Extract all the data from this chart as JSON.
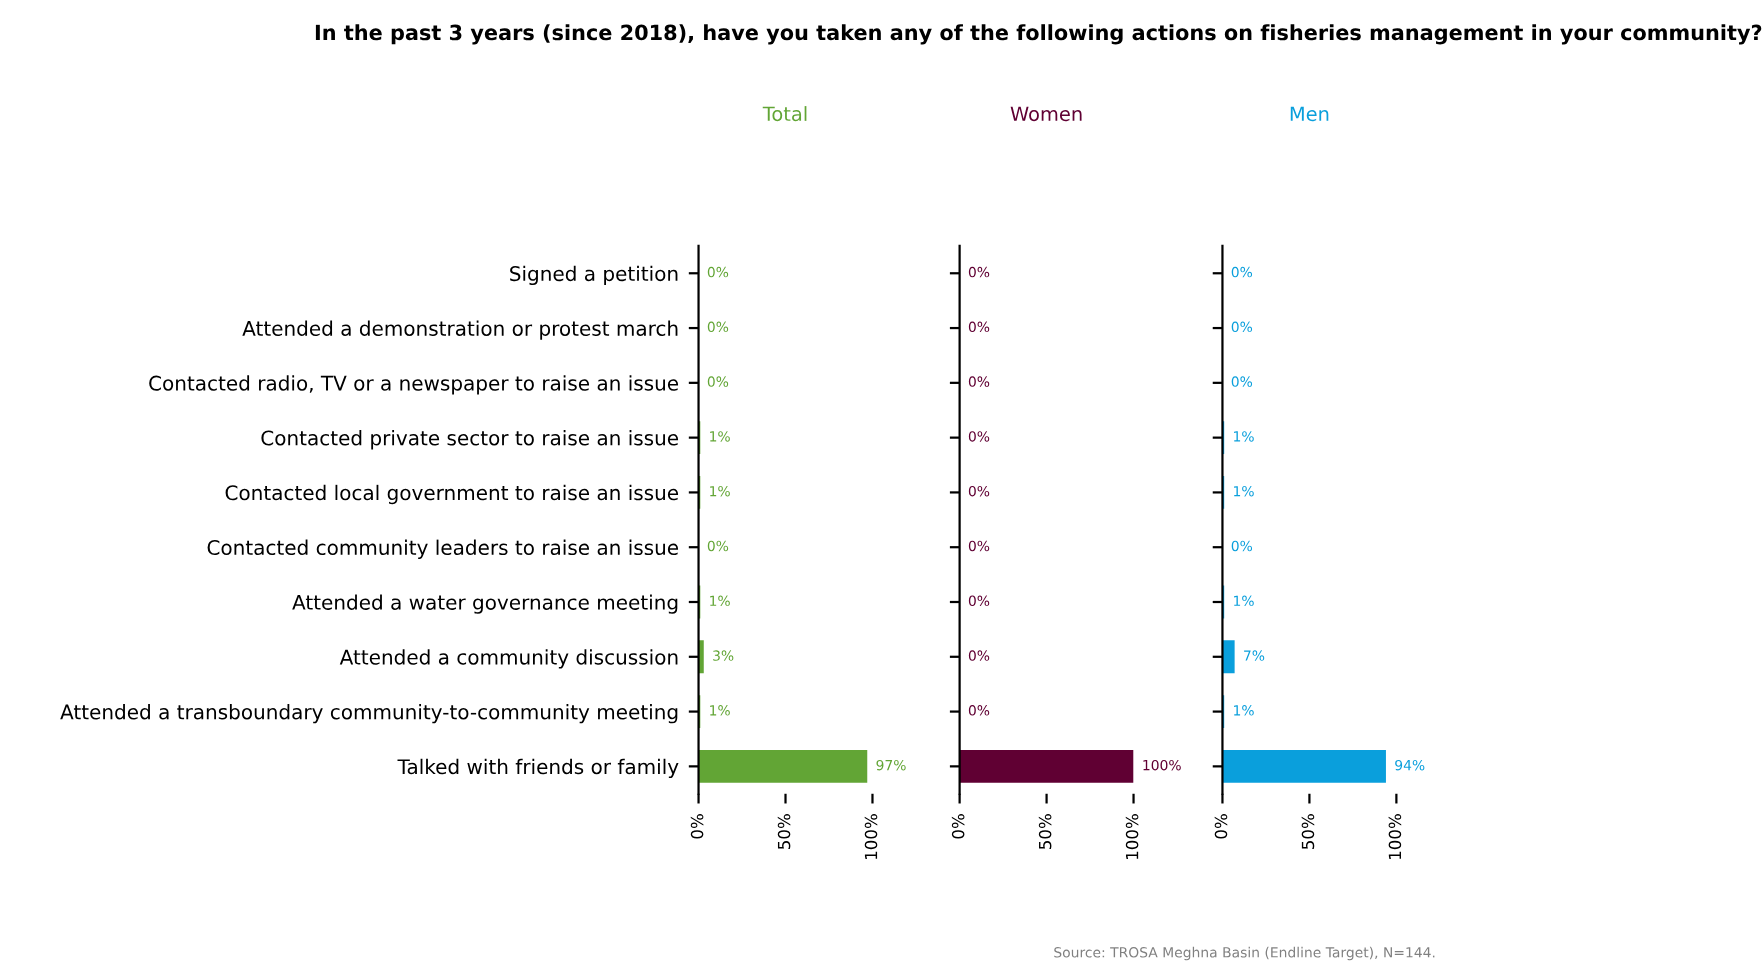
{
  "chart_data": [
    {
      "type": "bar",
      "orientation": "horizontal",
      "title": "Total",
      "annotations": [
        "In the past 3 years (since 2018), have you taken any of the following actions on fisheries management in your community?"
      ],
      "categories": [
        "Signed a petition",
        "Attended a demonstration or protest march",
        "Contacted radio, TV or a newspaper to raise an issue",
        "Contacted private sector to raise an issue",
        "Contacted local government to raise an issue",
        "Contacted community leaders to raise an issue",
        "Attended a water governance meeting",
        "Attended a community discussion",
        "Attended a transboundary community-to-community meeting",
        "Talked with friends or family"
      ],
      "series": [
        {
          "color": "#62a535",
          "values": [
            0,
            0,
            0,
            1,
            1,
            0,
            1,
            3,
            1,
            97
          ],
          "value_labels": [
            "0%",
            "0%",
            "0%",
            "1%",
            "1%",
            "0%",
            "1%",
            "3%",
            "1%",
            "97%"
          ]
        }
      ],
      "xlim": [
        0,
        100
      ],
      "xticks": [
        {
          "value": 0,
          "label": "0%"
        },
        {
          "value": 50,
          "label": "50%"
        },
        {
          "value": 100,
          "label": "100%"
        }
      ],
      "grid": false,
      "legend": false
    },
    {
      "type": "bar",
      "orientation": "horizontal",
      "title": "Women",
      "categories": [
        null,
        null,
        null,
        null,
        null,
        null,
        null,
        null,
        null,
        null
      ],
      "series": [
        {
          "color": "#600033",
          "values": [
            0,
            0,
            0,
            0,
            0,
            0,
            0,
            0,
            0,
            100
          ],
          "value_labels": [
            "0%",
            "0%",
            "0%",
            "0%",
            "0%",
            "0%",
            "0%",
            "0%",
            "0%",
            "100%"
          ]
        }
      ],
      "xlim": [
        0,
        100
      ],
      "xticks": [
        {
          "value": 0,
          "label": "0%"
        },
        {
          "value": 50,
          "label": "50%"
        },
        {
          "value": 100,
          "label": "100%"
        }
      ],
      "tick_labels": "x",
      "grid": false,
      "legend": false
    },
    {
      "type": "bar",
      "orientation": "horizontal",
      "title": "Men",
      "annotations": [
        "Source: TROSA Meghna Basin (Endline Target), N=144."
      ],
      "categories": [
        null,
        null,
        null,
        null,
        null,
        null,
        null,
        null,
        null,
        null
      ],
      "series": [
        {
          "color": "#0a9fdc",
          "values": [
            0,
            0,
            0,
            1,
            1,
            0,
            1,
            7,
            1,
            94
          ],
          "value_labels": [
            "0%",
            "0%",
            "0%",
            "1%",
            "1%",
            "0%",
            "1%",
            "7%",
            "1%",
            "94%"
          ]
        }
      ],
      "xlim": [
        0,
        100
      ],
      "xticks": [
        {
          "value": 0,
          "label": "0%"
        },
        {
          "value": 50,
          "label": "50%"
        },
        {
          "value": 100,
          "label": "100%"
        }
      ],
      "tick_labels": "x",
      "grid": false,
      "legend": false
    }
  ]
}
